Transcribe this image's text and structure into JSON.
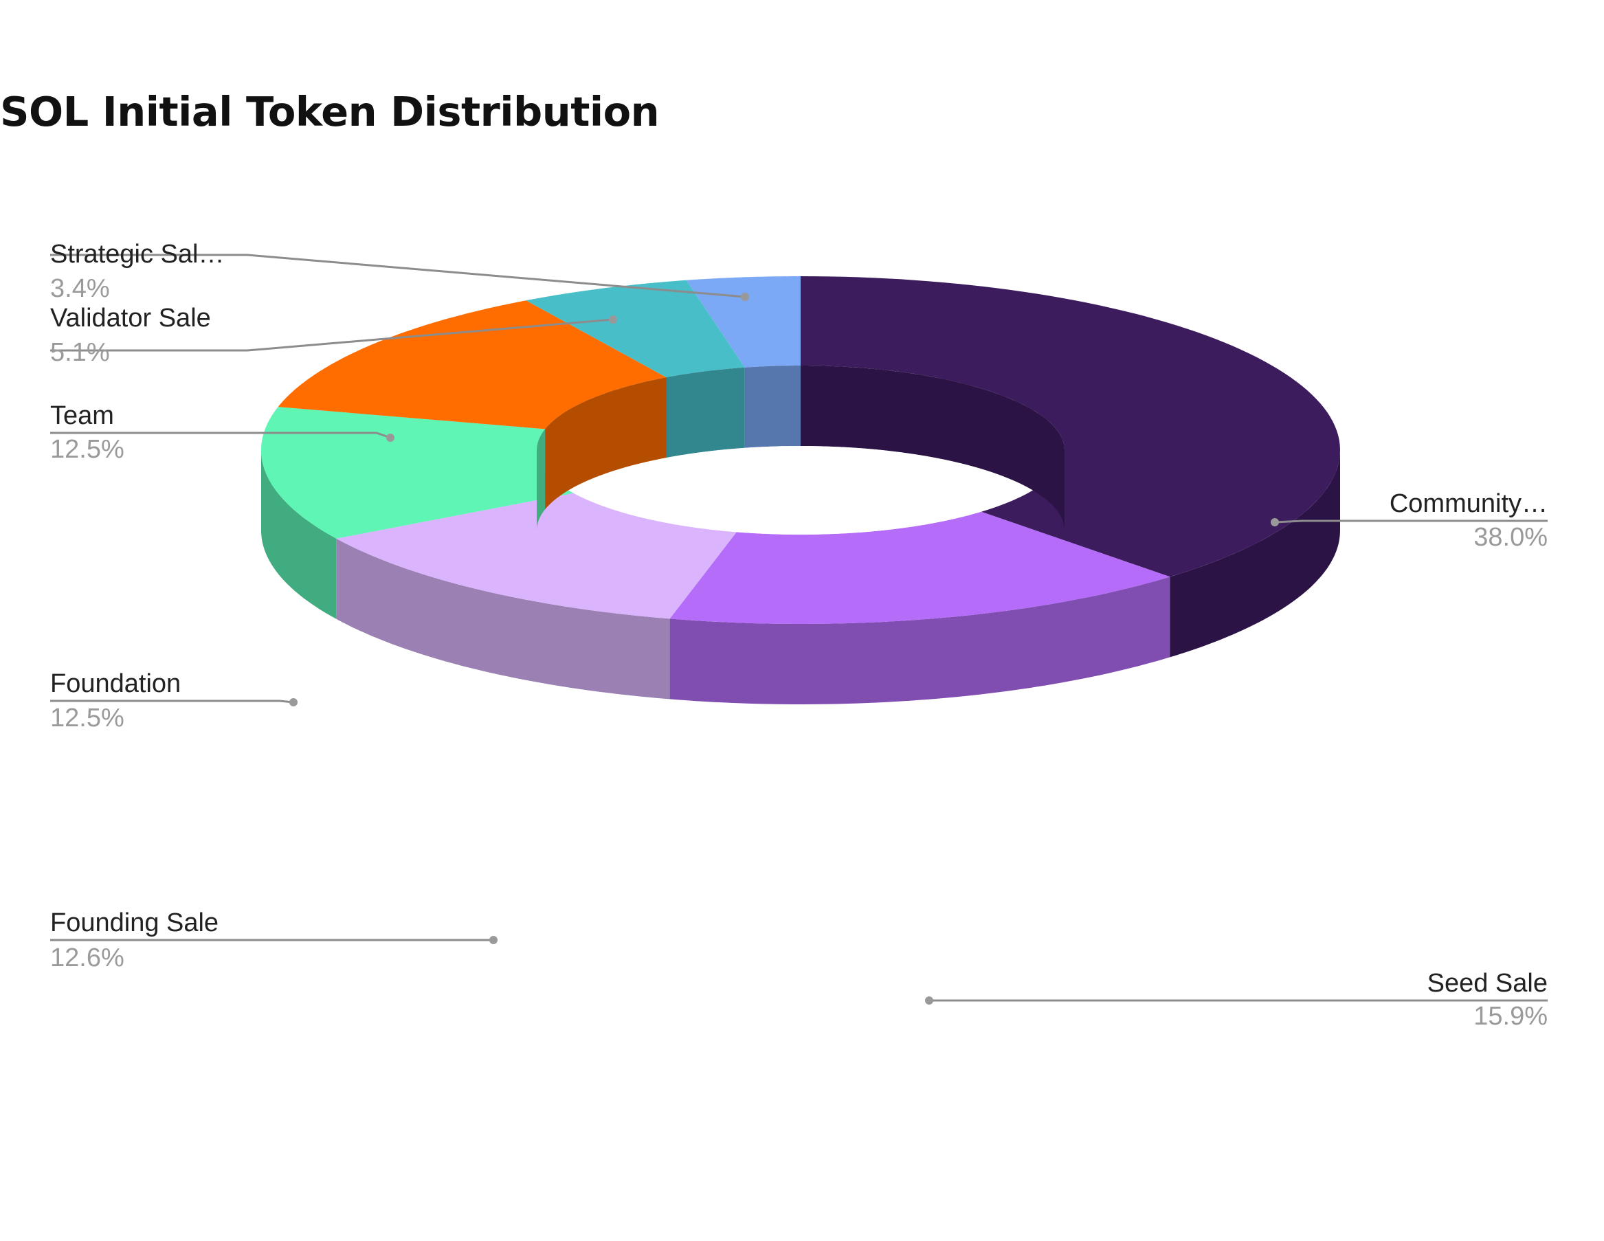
{
  "chart_data": {
    "type": "pie",
    "variant": "3d-donut",
    "title": "SOL Initial Token Distribution",
    "legend": "none",
    "labels_position": "outside with leader lines",
    "slices": [
      {
        "label": "Community…",
        "value": 38.0,
        "value_label": "38.0%",
        "color": "#3d1c5e",
        "side_color": "#2b1345",
        "inner_color": "#2b1345"
      },
      {
        "label": "Seed Sale",
        "value": 15.9,
        "value_label": "15.9%",
        "color": "#b46cf9",
        "side_color": "#804db0",
        "inner_color": "#804db0"
      },
      {
        "label": "Founding Sale",
        "value": 12.6,
        "value_label": "12.6%",
        "color": "#dab4fd",
        "side_color": "#9b80b3",
        "inner_color": "#9b80b3"
      },
      {
        "label": "Foundation",
        "value": 12.5,
        "value_label": "12.5%",
        "color": "#5ef5b5",
        "side_color": "#42ac81",
        "inner_color": "#42ac81"
      },
      {
        "label": "Team",
        "value": 12.5,
        "value_label": "12.5%",
        "color": "#ff6d00",
        "side_color": "#b44d00",
        "inner_color": "#b44d00"
      },
      {
        "label": "Validator Sale",
        "value": 5.1,
        "value_label": "5.1%",
        "color": "#47bec8",
        "side_color": "#32868d",
        "inner_color": "#32868d"
      },
      {
        "label": "Strategic Sal…",
        "value": 3.4,
        "value_label": "3.4%",
        "color": "#7ba9f5",
        "side_color": "#5677ad",
        "inner_color": "#5677ad"
      }
    ]
  }
}
